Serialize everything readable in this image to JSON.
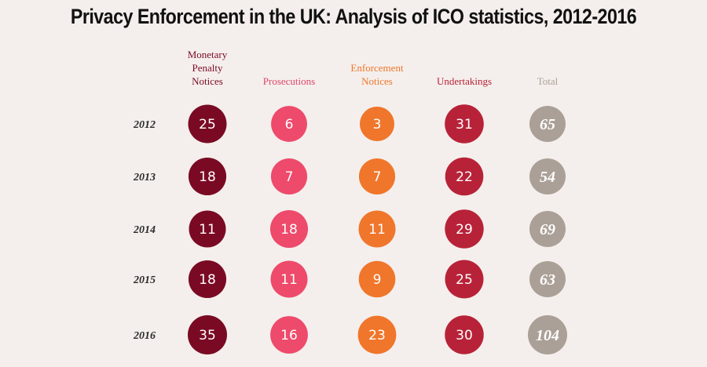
{
  "chart_data": {
    "type": "table",
    "title": "Privacy Enforcement in the UK: Analysis of ICO statistics, 2012-2016",
    "columns": [
      {
        "name": "Monetary Penalty Notices",
        "lines": [
          "Monetary",
          "Penalty",
          "Notices"
        ],
        "color": "#7a0a24",
        "header_color": "#7a0a24"
      },
      {
        "name": "Prosecutions",
        "lines": [
          "Prosecutions"
        ],
        "color": "#ee4a6b",
        "header_color": "#e0456a"
      },
      {
        "name": "Enforcement Notices",
        "lines": [
          "Enforcement",
          "Notices"
        ],
        "color": "#f0762b",
        "header_color": "#f0762b"
      },
      {
        "name": "Undertakings",
        "lines": [
          "Undertakings"
        ],
        "color": "#b82238",
        "header_color": "#b82238"
      },
      {
        "name": "Total",
        "lines": [
          "Total"
        ],
        "color": "#aba097",
        "header_color": "#aba097"
      }
    ],
    "rows": [
      {
        "year": "2012",
        "values": [
          25,
          6,
          3,
          31,
          65
        ]
      },
      {
        "year": "2013",
        "values": [
          18,
          7,
          7,
          22,
          54
        ]
      },
      {
        "year": "2014",
        "values": [
          11,
          18,
          11,
          29,
          69
        ]
      },
      {
        "year": "2015",
        "values": [
          18,
          11,
          9,
          25,
          63
        ]
      },
      {
        "year": "2016",
        "values": [
          35,
          16,
          23,
          30,
          104
        ]
      }
    ]
  }
}
